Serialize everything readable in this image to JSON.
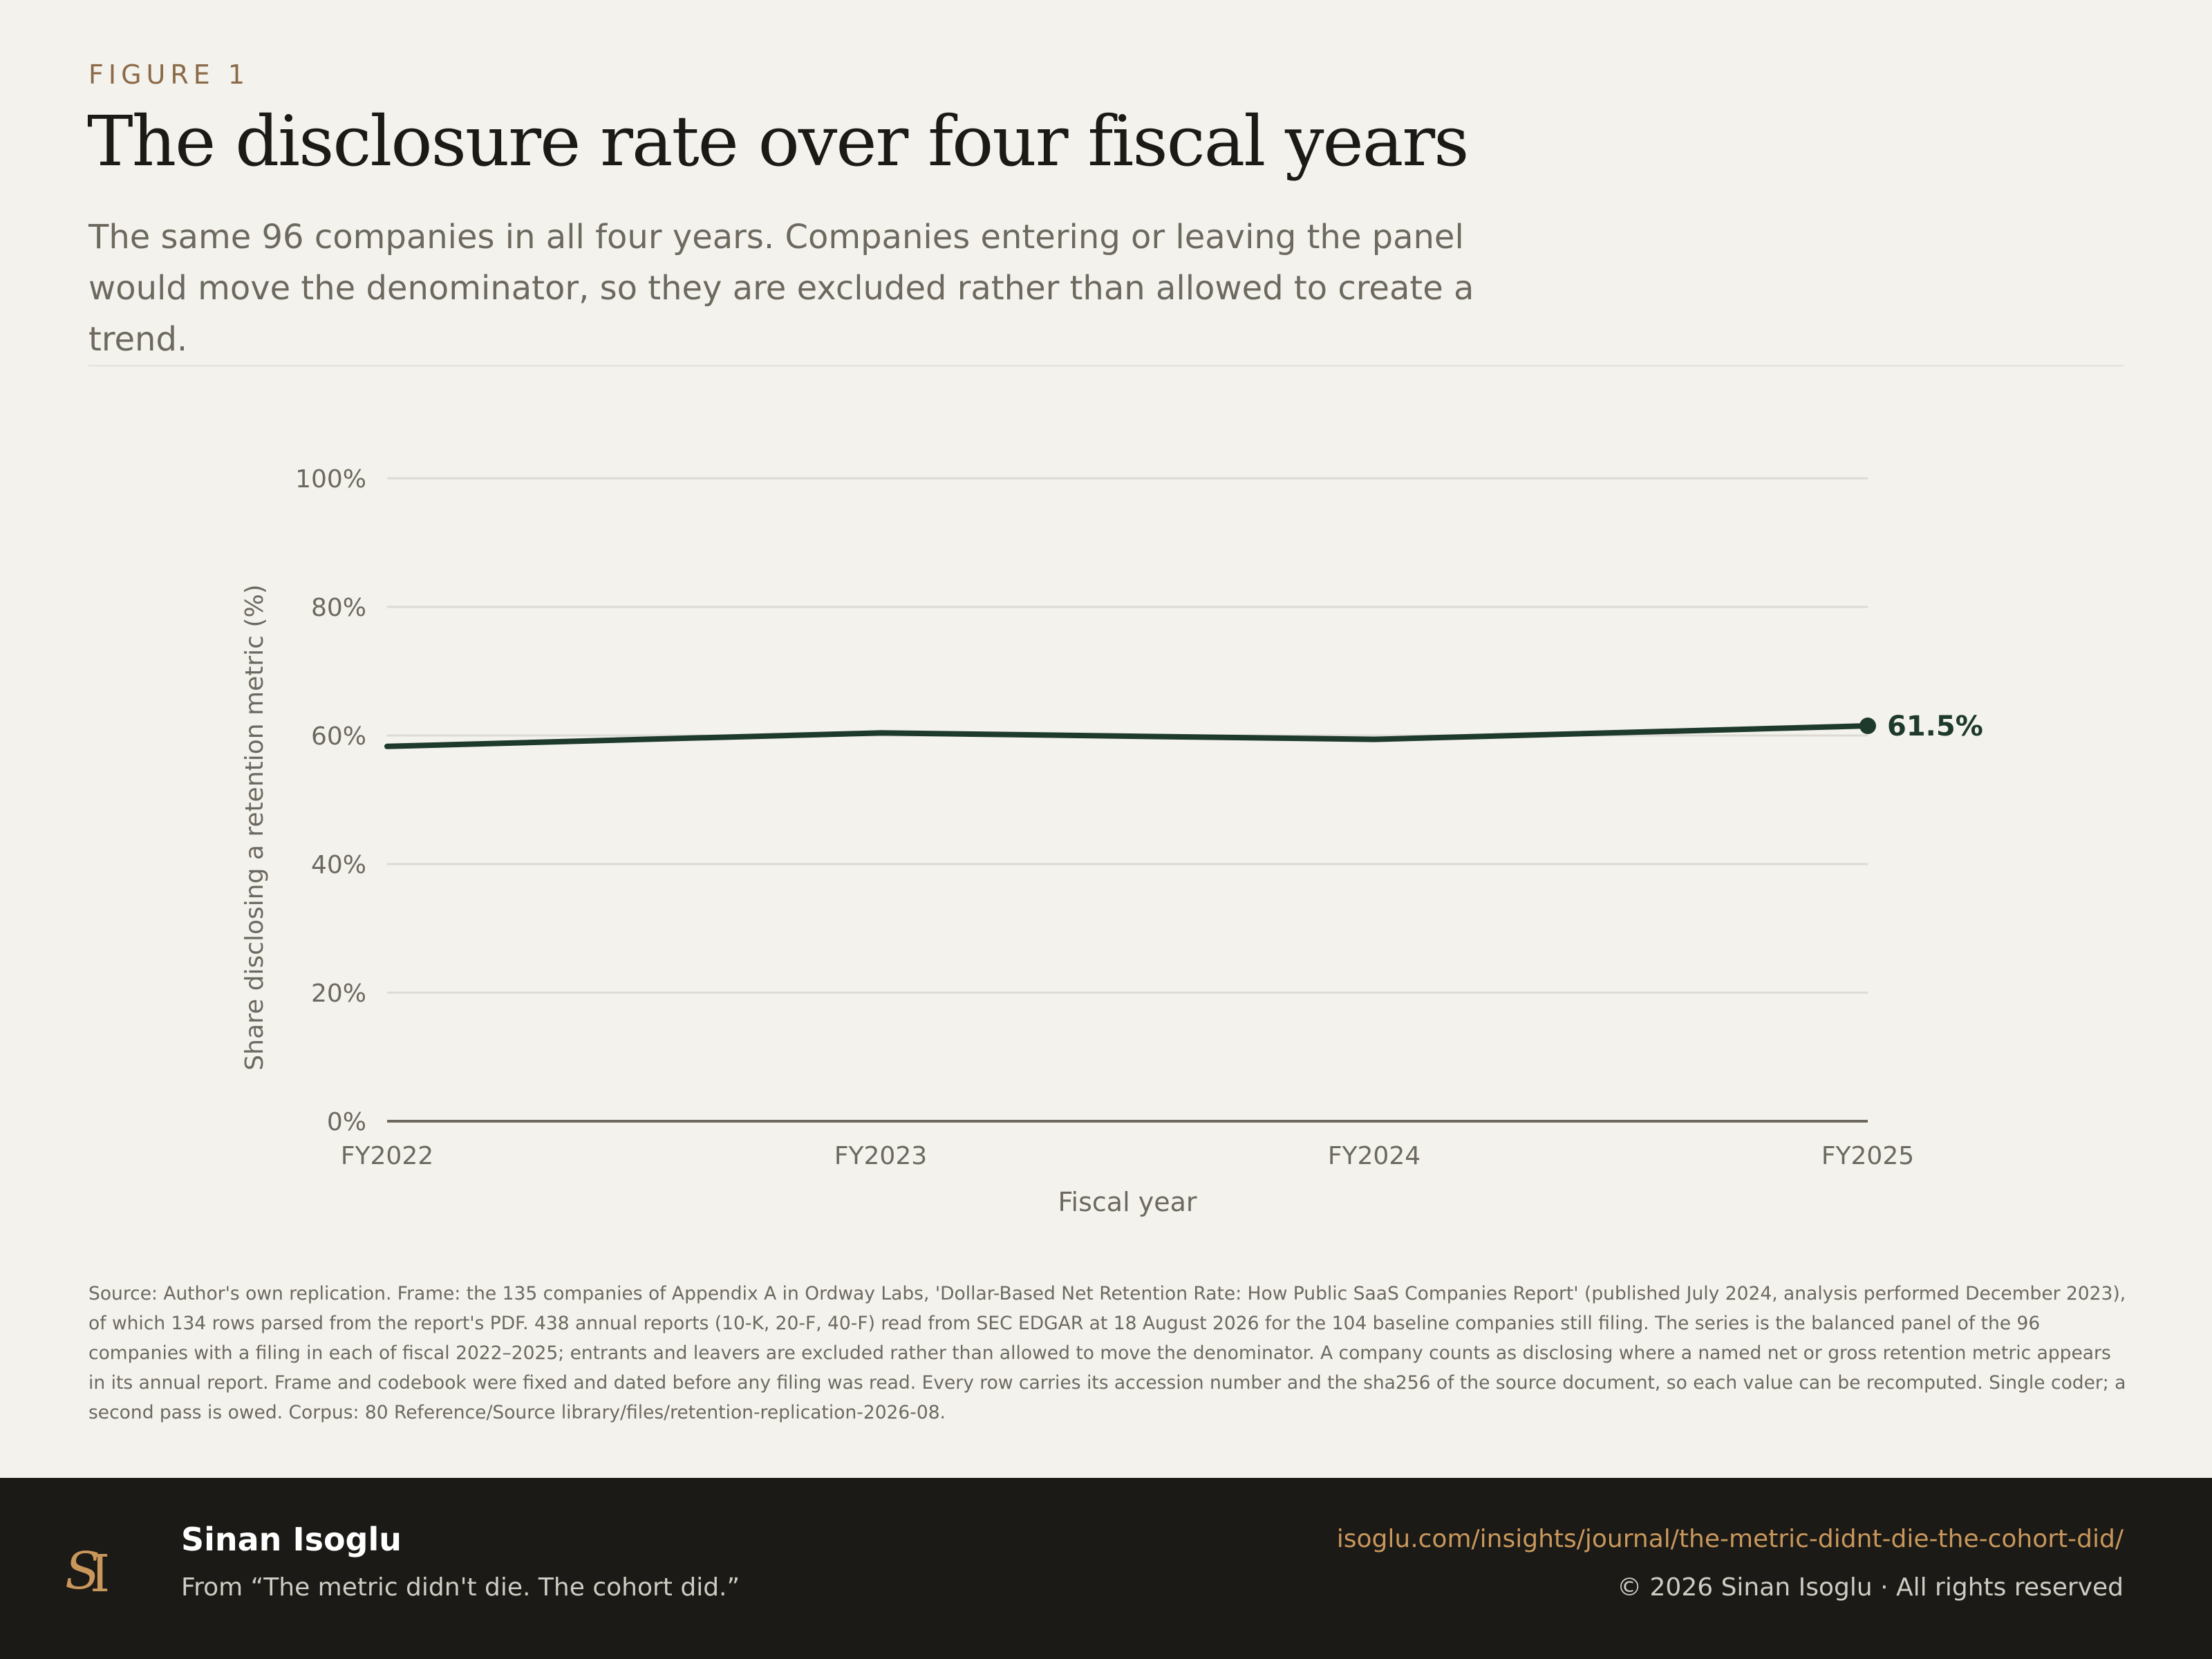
{
  "figure_label": "FIGURE 1",
  "title": "The disclosure rate over four fiscal years",
  "subtitle": "The same 96 companies in all four years. Companies entering or leaving the panel would move the denominator, so they are excluded rather than allowed to create a trend.",
  "colors": {
    "line": "#1e3a2c",
    "accent": "#8b6a48",
    "footer_bg": "#1b1a16",
    "link": "#c9975b"
  },
  "chart_data": {
    "type": "line",
    "xlabel": "Fiscal year",
    "ylabel": "Share disclosing a retention metric (%)",
    "x": [
      "FY2022",
      "FY2023",
      "FY2024",
      "FY2025"
    ],
    "series": [
      {
        "values": [
          58.3,
          60.4,
          59.4,
          61.5
        ]
      }
    ],
    "ylim": [
      0,
      100
    ],
    "yticks": [
      0,
      20,
      40,
      60,
      80,
      100
    ],
    "ytick_labels": [
      "0%",
      "20%",
      "40%",
      "60%",
      "80%",
      "100%"
    ],
    "grid": true,
    "end_label": "61.5%"
  },
  "source_note": "Source: Author's own replication. Frame: the 135 companies of Appendix A in Ordway Labs, 'Dollar-Based Net Retention Rate: How Public SaaS Companies Report' (published July 2024, analysis performed December 2023), of which 134 rows parsed from the report's PDF. 438 annual reports (10-K, 20-F, 40-F) read from SEC EDGAR at 18 August 2026 for the 104 baseline companies still filing. The series is the balanced panel of the 96 companies with a filing in each of fiscal 2022–2025; entrants and leavers are excluded rather than allowed to move the denominator. A company counts as disclosing where a named net or gross retention metric appears in its annual report. Frame and codebook were fixed and dated before any filing was read. Every row carries its accession number and the sha256 of the source document, so each value can be recomputed. Single coder; a second pass is owed. Corpus: 80 Reference/Source library/files/retention-replication-2026-08.",
  "footer": {
    "logo_monogram": "SI",
    "author": "Sinan Isoglu",
    "from": "From “The metric didn't die. The cohort did.”",
    "url": "isoglu.com/insights/journal/the-metric-didnt-die-the-cohort-did/",
    "copyright": "© 2026 Sinan Isoglu · All rights reserved"
  }
}
